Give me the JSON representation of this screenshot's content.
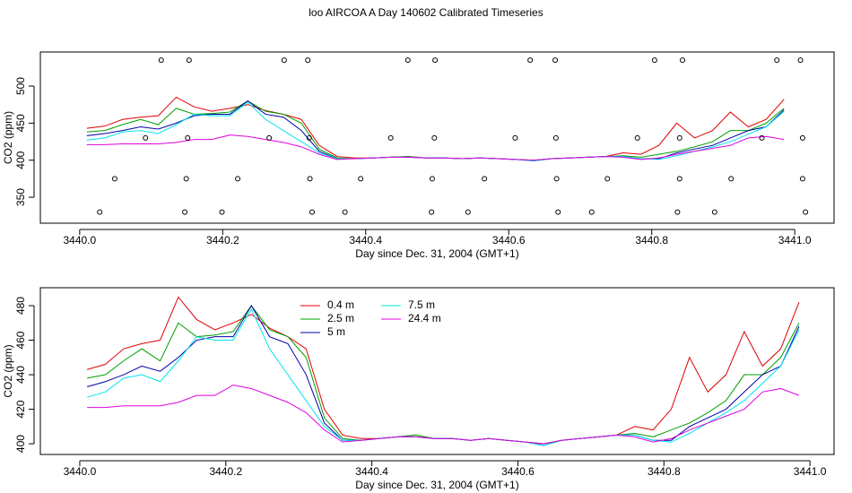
{
  "chart_data": [
    {
      "type": "line",
      "title": "loo AIRCOA A  Day 140602  Calibrated Timeseries",
      "xlabel": "Day since Dec. 31, 2004 (GMT+1)",
      "ylabel": "CO2 (ppm)",
      "xlim": [
        3439.945,
        3441.055
      ],
      "ylim": [
        315,
        546
      ],
      "xticks": [
        {
          "value": 3440,
          "label": "3440.0"
        },
        3440.2,
        3440.4,
        3440.6,
        3440.8,
        {
          "value": 3441,
          "label": "3441.0"
        }
      ],
      "yticks": [
        350,
        400,
        450,
        500
      ],
      "x": [
        3440.01,
        3440.035,
        3440.06,
        3440.085,
        3440.11,
        3440.135,
        3440.16,
        3440.185,
        3440.21,
        3440.235,
        3440.26,
        3440.285,
        3440.31,
        3440.335,
        3440.36,
        3440.385,
        3440.41,
        3440.435,
        3440.46,
        3440.485,
        3440.51,
        3440.535,
        3440.56,
        3440.585,
        3440.61,
        3440.635,
        3440.66,
        3440.685,
        3440.71,
        3440.735,
        3440.76,
        3440.785,
        3440.81,
        3440.835,
        3440.86,
        3440.885,
        3440.91,
        3440.935,
        3440.96,
        3440.985
      ],
      "series": [
        {
          "color": "#e00000",
          "values": [
            443,
            446,
            455,
            458,
            460,
            485,
            472,
            466,
            470,
            475,
            467,
            462,
            455,
            420,
            405,
            403,
            403,
            404,
            405,
            403,
            403,
            402,
            403,
            402,
            401,
            400,
            402,
            403,
            404,
            405,
            410,
            408,
            420,
            450,
            430,
            440,
            465,
            445,
            455,
            482
          ]
        },
        {
          "color": "#00a000",
          "values": [
            438,
            440,
            448,
            455,
            448,
            470,
            462,
            463,
            465,
            480,
            466,
            462,
            450,
            415,
            403,
            402,
            403,
            404,
            405,
            403,
            403,
            402,
            403,
            402,
            401,
            400,
            402,
            403,
            404,
            405,
            406,
            404,
            408,
            412,
            418,
            425,
            440,
            440,
            450,
            470
          ]
        },
        {
          "color": "#0000aa",
          "values": [
            433,
            436,
            440,
            445,
            442,
            450,
            460,
            462,
            462,
            480,
            462,
            458,
            440,
            412,
            402,
            402,
            403,
            404,
            404,
            403,
            403,
            402,
            403,
            402,
            401,
            399,
            402,
            403,
            404,
            405,
            405,
            402,
            402,
            410,
            415,
            420,
            430,
            440,
            445,
            468
          ]
        },
        {
          "color": "#00e5ee",
          "values": [
            427,
            430,
            438,
            440,
            436,
            448,
            462,
            460,
            460,
            478,
            455,
            440,
            425,
            410,
            402,
            402,
            403,
            404,
            404,
            403,
            403,
            402,
            403,
            402,
            401,
            399,
            402,
            403,
            404,
            405,
            405,
            402,
            401,
            406,
            412,
            418,
            425,
            435,
            445,
            466
          ]
        },
        {
          "color": "#e000e0",
          "values": [
            421,
            421,
            422,
            422,
            422,
            424,
            428,
            428,
            434,
            432,
            428,
            424,
            418,
            408,
            401,
            402,
            403,
            404,
            404,
            403,
            403,
            402,
            403,
            402,
            401,
            400,
            402,
            403,
            404,
            405,
            404,
            401,
            403,
            408,
            412,
            416,
            420,
            430,
            432,
            428
          ]
        },
        {
          "type": "scatter",
          "color": "#000000",
          "x": [
            3440.114,
            3440.153,
            3440.286,
            3440.319,
            3440.459,
            3440.497,
            3440.63,
            3440.665,
            3440.804,
            3440.843,
            3440.975,
            3441.008,
            3440.092,
            3440.151,
            3440.265,
            3440.321,
            3440.435,
            3440.496,
            3440.609,
            3440.666,
            3440.78,
            3440.839,
            3440.954,
            3441.011,
            3440.049,
            3440.149,
            3440.221,
            3440.322,
            3440.393,
            3440.493,
            3440.566,
            3440.667,
            3440.738,
            3440.839,
            3440.911,
            3441.011,
            3440.028,
            3440.147,
            3440.199,
            3440.325,
            3440.371,
            3440.492,
            3440.543,
            3440.669,
            3440.716,
            3440.836,
            3440.888,
            3441.015
          ],
          "values": [
            535,
            535,
            535,
            535,
            535,
            535,
            535,
            535,
            535,
            535,
            535,
            535,
            430,
            430,
            430,
            430,
            430,
            430,
            430,
            430,
            430,
            430,
            430,
            430,
            375,
            375,
            375,
            375,
            375,
            375,
            375,
            375,
            375,
            375,
            375,
            375,
            330,
            330,
            330,
            330,
            330,
            330,
            330,
            330,
            330,
            330,
            330,
            330
          ]
        }
      ]
    },
    {
      "type": "line",
      "xlabel": "Day since Dec. 31, 2004 (GMT+1)",
      "ylabel": "CO2 (ppm)",
      "xlim": [
        3439.946,
        3441.033
      ],
      "ylim": [
        393.8,
        490.4
      ],
      "xticks": [
        {
          "value": 3440,
          "label": "3440.0"
        },
        3440.2,
        3440.4,
        3440.6,
        3440.8,
        {
          "value": 3441,
          "label": "3441.0"
        }
      ],
      "yticks": [
        400,
        420,
        440,
        460,
        480
      ],
      "legend": "top",
      "x": [
        3440.01,
        3440.035,
        3440.06,
        3440.085,
        3440.11,
        3440.135,
        3440.16,
        3440.185,
        3440.21,
        3440.235,
        3440.26,
        3440.285,
        3440.31,
        3440.335,
        3440.36,
        3440.385,
        3440.41,
        3440.435,
        3440.46,
        3440.485,
        3440.51,
        3440.535,
        3440.56,
        3440.585,
        3440.61,
        3440.635,
        3440.66,
        3440.685,
        3440.71,
        3440.735,
        3440.76,
        3440.785,
        3440.81,
        3440.835,
        3440.86,
        3440.885,
        3440.91,
        3440.935,
        3440.96,
        3440.985
      ],
      "series": [
        {
          "name": "0.4 m",
          "color": "#e00000",
          "values": [
            443,
            446,
            455,
            458,
            460,
            485,
            472,
            466,
            470,
            475,
            467,
            462,
            455,
            420,
            405,
            403,
            403,
            404,
            405,
            403,
            403,
            402,
            403,
            402,
            401,
            400,
            402,
            403,
            404,
            405,
            410,
            408,
            420,
            450,
            430,
            440,
            465,
            445,
            455,
            482
          ]
        },
        {
          "name": "2.5 m",
          "color": "#00a000",
          "values": [
            438,
            440,
            448,
            455,
            448,
            470,
            462,
            463,
            465,
            480,
            466,
            462,
            450,
            415,
            403,
            402,
            403,
            404,
            405,
            403,
            403,
            402,
            403,
            402,
            401,
            400,
            402,
            403,
            404,
            405,
            406,
            404,
            408,
            412,
            418,
            425,
            440,
            440,
            450,
            470
          ]
        },
        {
          "name": "5 m",
          "color": "#0000aa",
          "values": [
            433,
            436,
            440,
            445,
            442,
            450,
            460,
            462,
            462,
            480,
            462,
            458,
            440,
            412,
            402,
            402,
            403,
            404,
            404,
            403,
            403,
            402,
            403,
            402,
            401,
            399,
            402,
            403,
            404,
            405,
            405,
            402,
            402,
            410,
            415,
            420,
            430,
            440,
            445,
            468
          ]
        },
        {
          "name": "7.5 m",
          "color": "#00e5ee",
          "values": [
            427,
            430,
            438,
            440,
            436,
            448,
            462,
            460,
            460,
            478,
            455,
            440,
            425,
            410,
            402,
            402,
            403,
            404,
            404,
            403,
            403,
            402,
            403,
            402,
            401,
            399,
            402,
            403,
            404,
            405,
            405,
            402,
            401,
            406,
            412,
            418,
            425,
            435,
            445,
            466
          ]
        },
        {
          "name": "24.4 m",
          "color": "#e000e0",
          "values": [
            421,
            421,
            422,
            422,
            422,
            424,
            428,
            428,
            434,
            432,
            428,
            424,
            418,
            408,
            401,
            402,
            403,
            404,
            404,
            403,
            403,
            402,
            403,
            402,
            401,
            400,
            402,
            403,
            404,
            405,
            404,
            401,
            403,
            408,
            412,
            416,
            420,
            430,
            432,
            428
          ]
        }
      ]
    }
  ]
}
